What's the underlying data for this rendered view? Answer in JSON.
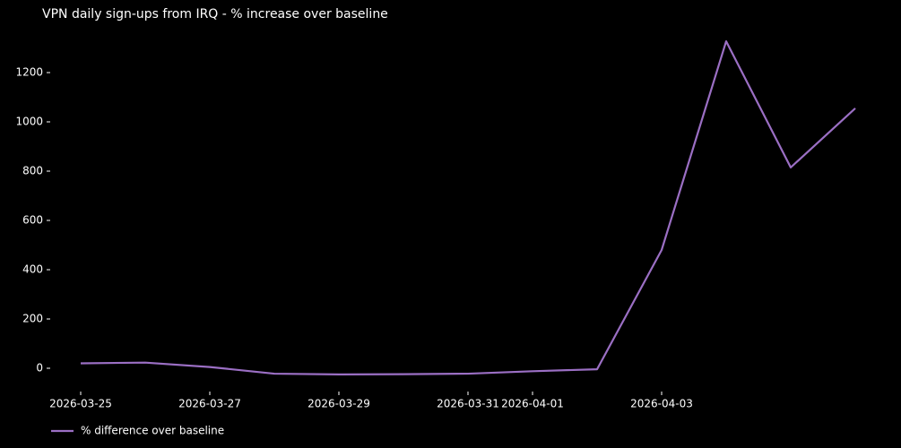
{
  "chart_data": {
    "type": "line",
    "title": "VPN daily sign-ups from IRQ - % increase over baseline",
    "x": [
      "2026-03-25",
      "2026-03-26",
      "2026-03-27",
      "2026-03-28",
      "2026-03-29",
      "2026-03-30",
      "2026-03-31",
      "2026-04-01",
      "2026-04-02",
      "2026-04-03",
      "2026-04-04",
      "2026-04-05",
      "2026-04-06"
    ],
    "series": [
      {
        "name": "% difference over baseline",
        "color": "#9b6fc4",
        "values": [
          20,
          23,
          5,
          -22,
          -25,
          -24,
          -22,
          -12,
          -4,
          480,
          1327,
          815,
          1055
        ]
      }
    ],
    "xlim": [
      "2026-03-25",
      "2026-04-06"
    ],
    "xticks": [
      "2026-03-25",
      "2026-03-27",
      "2026-03-29",
      "2026-03-31",
      "2026-04-01",
      "2026-04-03"
    ],
    "ylim": [
      -90,
      1390
    ],
    "yticks": [
      0,
      200,
      400,
      600,
      800,
      1000,
      1200
    ],
    "legend": "lower left"
  }
}
